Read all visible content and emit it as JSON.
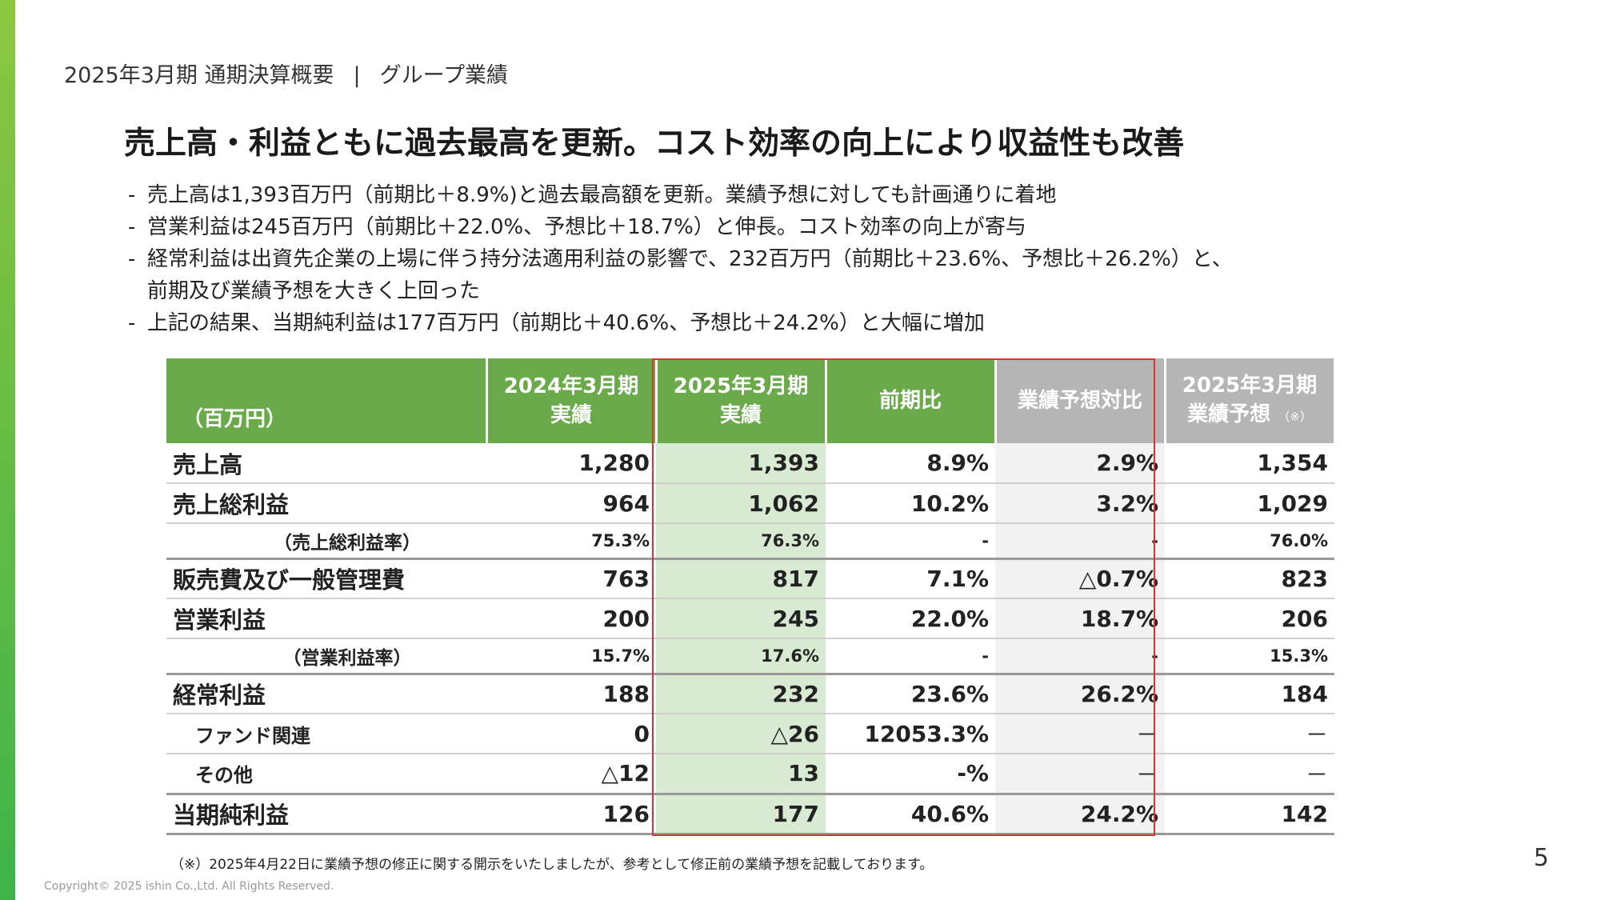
{
  "header": {
    "period": "2025年3月期 通期決算概要",
    "separator": "|",
    "section": "グループ業績"
  },
  "headline": "売上高・利益ともに過去最高を更新。コスト効率の向上により収益性も改善",
  "bullets": [
    {
      "lines": [
        "売上高は1,393百万円（前期比＋8.9%)と過去最高額を更新。業績予想に対しても計画通りに着地"
      ]
    },
    {
      "lines": [
        "営業利益は245百万円（前期比＋22.0%、予想比＋18.7%）と伸長。コスト効率の向上が寄与"
      ]
    },
    {
      "lines": [
        "経常利益は出資先企業の上場に伴う持分法適用利益の影響で、232百万円（前期比＋23.6%、予想比＋26.2%）と、",
        "前期及び業績予想を大きく上回った"
      ]
    },
    {
      "lines": [
        "上記の結果、当期純利益は177百万円（前期比＋40.6%、予想比＋24.2%）と大幅に増加"
      ]
    }
  ],
  "table": {
    "unit_label": "（百万円）",
    "columns": [
      {
        "line1": "2024年3月期",
        "line2": "実績",
        "note": ""
      },
      {
        "line1": "2025年3月期",
        "line2": "実績",
        "note": ""
      },
      {
        "line1": "前期比",
        "line2": "",
        "note": ""
      },
      {
        "line1": "業績予想対比",
        "line2": "",
        "note": ""
      },
      {
        "line1": "2025年3月期",
        "line2": "業績予想",
        "note": "（※）"
      }
    ],
    "rows": [
      {
        "label": "売上高",
        "values": [
          "1,280",
          "1,393",
          "8.9%",
          "2.9%",
          "1,354"
        ]
      },
      {
        "label": "売上総利益",
        "values": [
          "964",
          "1,062",
          "10.2%",
          "3.2%",
          "1,029"
        ]
      },
      {
        "label": "（売上総利益率）",
        "values": [
          "75.3%",
          "76.3%",
          "-",
          "-",
          "76.0%"
        ]
      },
      {
        "label": "販売費及び一般管理費",
        "values": [
          "763",
          "817",
          "7.1%",
          "△0.7%",
          "823"
        ]
      },
      {
        "label": "営業利益",
        "values": [
          "200",
          "245",
          "22.0%",
          "18.7%",
          "206"
        ]
      },
      {
        "label": "（営業利益率）",
        "values": [
          "15.7%",
          "17.6%",
          "-",
          "-",
          "15.3%"
        ]
      },
      {
        "label": "経常利益",
        "values": [
          "188",
          "232",
          "23.6%",
          "26.2%",
          "184"
        ]
      },
      {
        "label": "ファンド関連",
        "values": [
          "0",
          "△26",
          "12053.3%",
          "－",
          "－"
        ]
      },
      {
        "label": "その他",
        "values": [
          "△12",
          "13",
          "-%",
          "－",
          "－"
        ]
      },
      {
        "label": "当期純利益",
        "values": [
          "126",
          "177",
          "40.6%",
          "24.2%",
          "142"
        ]
      }
    ]
  },
  "footnote": "（※）2025年4月22日に業績予想の修正に関する開示をいたしましたが、参考として修正前の業績予想を記載しております。",
  "page_number": "5",
  "copyright": "Copyright©  2025 ishin Co.,Ltd. All Rights Reserved.",
  "colors": {
    "accent_green": "#6aaa4a",
    "highlight_green": "#d9ead3",
    "header_gray": "#b5b5b5",
    "highlight_border": "#e03030"
  }
}
